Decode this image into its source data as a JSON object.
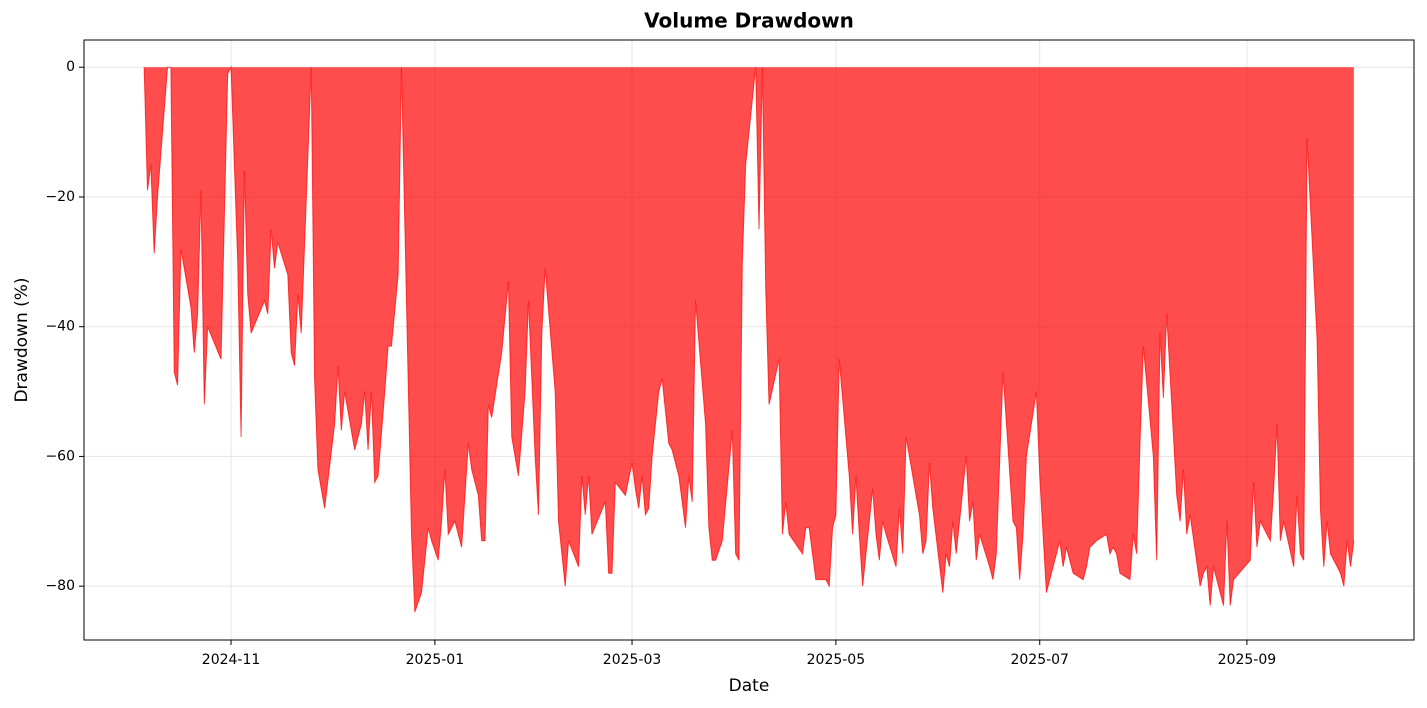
{
  "chart_data": {
    "type": "area",
    "title": "Volume Drawdown",
    "x_label": "Date",
    "y_label": "Drawdown (%)",
    "x": [
      "2024-10-06",
      "2024-10-07",
      "2024-10-08",
      "2024-10-09",
      "2024-10-10",
      "2024-10-13",
      "2024-10-14",
      "2024-10-15",
      "2024-10-16",
      "2024-10-17",
      "2024-10-20",
      "2024-10-21",
      "2024-10-22",
      "2024-10-23",
      "2024-10-24",
      "2024-10-25",
      "2024-10-29",
      "2024-10-31",
      "2024-11-01",
      "2024-11-03",
      "2024-11-04",
      "2024-11-05",
      "2024-11-06",
      "2024-11-07",
      "2024-11-11",
      "2024-11-12",
      "2024-11-13",
      "2024-11-14",
      "2024-11-15",
      "2024-11-18",
      "2024-11-19",
      "2024-11-20",
      "2024-11-21",
      "2024-11-22",
      "2024-11-25",
      "2024-11-26",
      "2024-11-27",
      "2024-11-29",
      "2024-12-02",
      "2024-12-03",
      "2024-12-04",
      "2024-12-05",
      "2024-12-06",
      "2024-12-08",
      "2024-12-10",
      "2024-12-11",
      "2024-12-12",
      "2024-12-13",
      "2024-12-14",
      "2024-12-15",
      "2024-12-17",
      "2024-12-18",
      "2024-12-19",
      "2024-12-21",
      "2024-12-22",
      "2024-12-25",
      "2024-12-26",
      "2024-12-28",
      "2024-12-30",
      "2024-12-31",
      "2025-01-02",
      "2025-01-03",
      "2025-01-04",
      "2025-01-05",
      "2025-01-06",
      "2025-01-07",
      "2025-01-09",
      "2025-01-11",
      "2025-01-12",
      "2025-01-14",
      "2025-01-15",
      "2025-01-16",
      "2025-01-17",
      "2025-01-18",
      "2025-01-21",
      "2025-01-23",
      "2025-01-24",
      "2025-01-26",
      "2025-01-28",
      "2025-01-29",
      "2025-01-31",
      "2025-02-01",
      "2025-02-02",
      "2025-02-03",
      "2025-02-06",
      "2025-02-07",
      "2025-02-09",
      "2025-02-10",
      "2025-02-13",
      "2025-02-14",
      "2025-02-15",
      "2025-02-16",
      "2025-02-17",
      "2025-02-21",
      "2025-02-22",
      "2025-02-23",
      "2025-02-24",
      "2025-02-27",
      "2025-03-01",
      "2025-03-02",
      "2025-03-03",
      "2025-03-04",
      "2025-03-05",
      "2025-03-06",
      "2025-03-07",
      "2025-03-09",
      "2025-03-10",
      "2025-03-12",
      "2025-03-13",
      "2025-03-15",
      "2025-03-16",
      "2025-03-17",
      "2025-03-18",
      "2025-03-19",
      "2025-03-20",
      "2025-03-23",
      "2025-03-24",
      "2025-03-25",
      "2025-03-26",
      "2025-03-28",
      "2025-03-31",
      "2025-04-01",
      "2025-04-02",
      "2025-04-03",
      "2025-04-04",
      "2025-04-07",
      "2025-04-08",
      "2025-04-09",
      "2025-04-10",
      "2025-04-11",
      "2025-04-14",
      "2025-04-15",
      "2025-04-16",
      "2025-04-17",
      "2025-04-21",
      "2025-04-22",
      "2025-04-23",
      "2025-04-25",
      "2025-04-28",
      "2025-04-29",
      "2025-04-30",
      "2025-05-01",
      "2025-05-02",
      "2025-05-05",
      "2025-05-06",
      "2025-05-07",
      "2025-05-08",
      "2025-05-09",
      "2025-05-12",
      "2025-05-13",
      "2025-05-14",
      "2025-05-15",
      "2025-05-16",
      "2025-05-19",
      "2025-05-20",
      "2025-05-21",
      "2025-05-22",
      "2025-05-26",
      "2025-05-27",
      "2025-05-28",
      "2025-05-29",
      "2025-05-30",
      "2025-06-02",
      "2025-06-03",
      "2025-06-04",
      "2025-06-05",
      "2025-06-06",
      "2025-06-09",
      "2025-06-10",
      "2025-06-11",
      "2025-06-12",
      "2025-06-13",
      "2025-06-16",
      "2025-06-17",
      "2025-06-18",
      "2025-06-20",
      "2025-06-23",
      "2025-06-24",
      "2025-06-25",
      "2025-06-26",
      "2025-06-27",
      "2025-06-30",
      "2025-07-01",
      "2025-07-02",
      "2025-07-03",
      "2025-07-07",
      "2025-07-08",
      "2025-07-09",
      "2025-07-10",
      "2025-07-11",
      "2025-07-14",
      "2025-07-15",
      "2025-07-16",
      "2025-07-18",
      "2025-07-21",
      "2025-07-22",
      "2025-07-23",
      "2025-07-24",
      "2025-07-25",
      "2025-07-28",
      "2025-07-29",
      "2025-07-30",
      "2025-07-31",
      "2025-08-01",
      "2025-08-04",
      "2025-08-05",
      "2025-08-06",
      "2025-08-07",
      "2025-08-08",
      "2025-08-11",
      "2025-08-12",
      "2025-08-13",
      "2025-08-14",
      "2025-08-15",
      "2025-08-18",
      "2025-08-19",
      "2025-08-20",
      "2025-08-21",
      "2025-08-22",
      "2025-08-25",
      "2025-08-26",
      "2025-08-27",
      "2025-08-28",
      "2025-09-02",
      "2025-09-03",
      "2025-09-04",
      "2025-09-05",
      "2025-09-08",
      "2025-09-09",
      "2025-09-10",
      "2025-09-11",
      "2025-09-12",
      "2025-09-15",
      "2025-09-16",
      "2025-09-17",
      "2025-09-18",
      "2025-09-19",
      "2025-09-22",
      "2025-09-23",
      "2025-09-24",
      "2025-09-25",
      "2025-09-26",
      "2025-09-29",
      "2025-09-30",
      "2025-10-01",
      "2025-10-02",
      "2025-10-03"
    ],
    "values": [
      0,
      -19,
      -15,
      -28.7,
      -20,
      0,
      0,
      -47,
      -49,
      -28,
      -37,
      -44,
      -38,
      -19,
      -52,
      -40,
      -45,
      -1,
      0,
      -30,
      -57,
      -16,
      -35,
      -41,
      -36,
      -38,
      -25,
      -31,
      -27,
      -32,
      -44,
      -46,
      -35,
      -41,
      0,
      -48,
      -62,
      -68,
      -55,
      -46,
      -56,
      -50,
      -53,
      -59,
      -55,
      -50,
      -59,
      -50,
      -64,
      -63,
      -50,
      -43,
      -43,
      -32,
      0,
      -72,
      -84,
      -81,
      -71,
      -73,
      -76,
      -70,
      -62,
      -72,
      -71,
      -70,
      -74,
      -58,
      -62,
      -66,
      -73,
      -73,
      -52,
      -54,
      -44,
      -33,
      -57,
      -63,
      -50,
      -36,
      -60,
      -69,
      -41,
      -31,
      -50,
      -70,
      -80,
      -73,
      -77,
      -63,
      -69,
      -63,
      -72,
      -67,
      -78,
      -78,
      -64,
      -66,
      -61,
      -65,
      -68,
      -63,
      -69,
      -68,
      -60,
      -50,
      -48,
      -58,
      -59,
      -63,
      -67,
      -71,
      -63,
      -67,
      -36,
      -55,
      -71,
      -76,
      -76,
      -73,
      -56,
      -75,
      -76,
      -30,
      -15,
      0,
      -25,
      0,
      -34,
      -52,
      -45,
      -72,
      -67,
      -72,
      -75,
      -71,
      -71,
      -79,
      -79,
      -80,
      -71,
      -69,
      -45,
      -63,
      -72,
      -63,
      -72,
      -80,
      -65,
      -72,
      -76,
      -70,
      -72,
      -77,
      -68,
      -75,
      -57,
      -69,
      -75,
      -73,
      -61,
      -68,
      -81,
      -75,
      -77,
      -70,
      -75,
      -60,
      -70,
      -67,
      -76,
      -72,
      -77,
      -79,
      -75,
      -47,
      -70,
      -71,
      -79,
      -72,
      -60,
      -50,
      -63,
      -72,
      -81,
      -73,
      -77,
      -74,
      -76,
      -78,
      -79,
      -77,
      -74,
      -73,
      -72,
      -75,
      -74,
      -75,
      -78,
      -79,
      -72,
      -75,
      -58,
      -43,
      -60,
      -76,
      -41,
      -51,
      -38,
      -66,
      -70,
      -62,
      -72,
      -69,
      -80,
      -78,
      -77,
      -83,
      -77,
      -83,
      -70,
      -83,
      -79,
      -76,
      -64,
      -74,
      -70,
      -73,
      -65,
      -55,
      -73,
      -70,
      -77,
      -66,
      -75,
      -76,
      -11,
      -42,
      -68,
      -77,
      -70,
      -75,
      -78,
      -80,
      -73,
      -77,
      -73
    ],
    "color": "#ff0000",
    "xlim": [
      "2024-09-18",
      "2025-10-21"
    ],
    "ylim": [
      -88.3,
      4.2
    ],
    "xticks": [
      {
        "value": "2024-11-01",
        "label": "2024-11"
      },
      {
        "value": "2025-01-01",
        "label": "2025-01"
      },
      {
        "value": "2025-03-01",
        "label": "2025-03"
      },
      {
        "value": "2025-05-01",
        "label": "2025-05"
      },
      {
        "value": "2025-07-01",
        "label": "2025-07"
      },
      {
        "value": "2025-09-01",
        "label": "2025-09"
      }
    ],
    "yticks": [
      0,
      {
        "value": -20,
        "label": "−20"
      },
      {
        "value": -40,
        "label": "−40"
      },
      {
        "value": -60,
        "label": "−60"
      },
      {
        "value": -80,
        "label": "−80"
      }
    ],
    "grid": true
  }
}
